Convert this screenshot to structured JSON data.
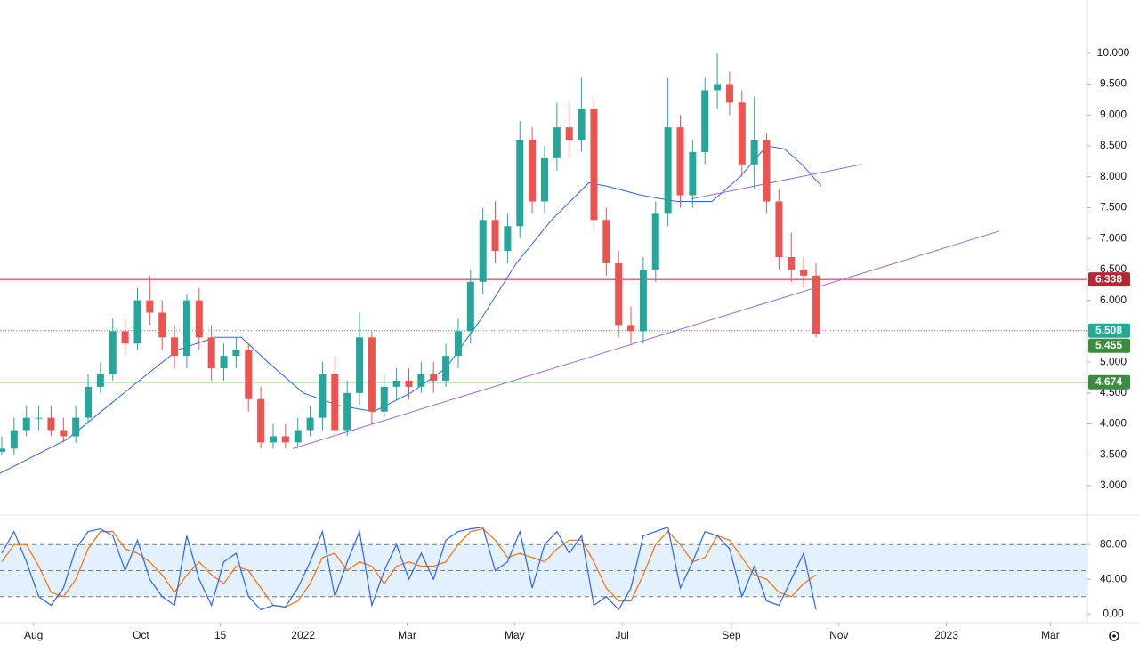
{
  "chart_data": [
    {
      "type": "candlestick",
      "x": [
        -18,
        -11,
        -4,
        3,
        10,
        17,
        24,
        31,
        38,
        45,
        52,
        59,
        66,
        73,
        80,
        87,
        94,
        101,
        108,
        115,
        122,
        129,
        136,
        143,
        150,
        157,
        164,
        171,
        178,
        185,
        192,
        199,
        206,
        213,
        220,
        227,
        234,
        241,
        248,
        255,
        262,
        269,
        276,
        283,
        290,
        297,
        304,
        311,
        318,
        325,
        332,
        339,
        346,
        353,
        360,
        367,
        374,
        381,
        388,
        395,
        402,
        409,
        416,
        423,
        430,
        437,
        444
      ],
      "open": [
        3.55,
        3.6,
        3.9,
        4.1,
        4.1,
        3.9,
        3.8,
        4.1,
        4.6,
        4.8,
        5.5,
        5.3,
        6.0,
        5.8,
        5.4,
        5.1,
        6.0,
        5.4,
        4.9,
        5.1,
        5.2,
        4.4,
        3.7,
        3.8,
        3.7,
        3.9,
        4.1,
        4.8,
        3.9,
        4.5,
        5.4,
        4.2,
        4.6,
        4.7,
        4.6,
        4.8,
        4.7,
        5.1,
        5.5,
        6.3,
        7.3,
        6.8,
        7.2,
        8.6,
        7.6,
        8.3,
        8.8,
        8.6,
        9.1,
        7.3,
        6.6,
        5.6,
        5.5,
        6.5,
        7.4,
        8.8,
        7.7,
        8.4,
        9.4,
        9.5,
        9.2,
        8.2,
        8.6,
        7.6,
        6.7,
        6.5,
        6.4
      ],
      "high": [
        3.8,
        4.1,
        4.3,
        4.3,
        4.3,
        4.1,
        4.3,
        4.8,
        5.0,
        5.7,
        5.7,
        6.2,
        6.4,
        6.0,
        5.6,
        6.1,
        6.2,
        5.6,
        5.3,
        5.4,
        5.3,
        4.6,
        4.0,
        4.0,
        4.1,
        4.3,
        5.0,
        5.1,
        4.7,
        5.8,
        5.5,
        4.8,
        4.9,
        4.9,
        5.0,
        5.0,
        5.3,
        5.7,
        6.5,
        7.5,
        7.6,
        7.4,
        8.9,
        8.8,
        8.5,
        9.2,
        9.2,
        9.6,
        9.3,
        7.5,
        6.8,
        5.9,
        6.7,
        7.6,
        9.6,
        9.0,
        8.6,
        9.6,
        10.0,
        9.7,
        9.4,
        9.3,
        8.7,
        7.8,
        7.1,
        6.7,
        6.6
      ],
      "low": [
        3.5,
        3.5,
        3.8,
        3.9,
        3.8,
        3.7,
        3.7,
        4.0,
        4.5,
        4.7,
        5.1,
        5.2,
        5.6,
        5.2,
        4.9,
        4.9,
        5.2,
        4.7,
        4.7,
        4.9,
        4.2,
        3.6,
        3.6,
        3.6,
        3.6,
        3.8,
        3.9,
        3.8,
        3.8,
        4.3,
        4.0,
        4.1,
        4.4,
        4.4,
        4.5,
        4.5,
        4.6,
        4.9,
        5.3,
        6.1,
        6.6,
        6.6,
        7.0,
        7.4,
        7.4,
        8.1,
        8.3,
        8.4,
        7.1,
        6.4,
        5.4,
        5.3,
        5.3,
        6.3,
        7.2,
        7.5,
        7.5,
        8.2,
        9.1,
        9.0,
        8.0,
        7.8,
        7.4,
        6.5,
        6.3,
        6.2,
        5.4
      ],
      "close": [
        3.6,
        3.9,
        4.1,
        4.1,
        3.9,
        3.8,
        4.1,
        4.6,
        4.8,
        5.5,
        5.3,
        6.0,
        5.8,
        5.4,
        5.1,
        6.0,
        5.4,
        4.9,
        5.1,
        5.2,
        4.4,
        3.7,
        3.8,
        3.7,
        3.9,
        4.1,
        4.8,
        3.9,
        4.5,
        5.4,
        4.2,
        4.6,
        4.7,
        4.6,
        4.8,
        4.7,
        5.1,
        5.5,
        6.3,
        7.3,
        6.8,
        7.2,
        8.6,
        7.6,
        8.3,
        8.8,
        8.6,
        9.1,
        7.3,
        6.6,
        5.6,
        5.5,
        6.5,
        7.4,
        8.8,
        7.7,
        8.4,
        9.4,
        9.5,
        9.2,
        8.2,
        8.6,
        7.6,
        6.7,
        6.5,
        6.4,
        5.46
      ],
      "up_color": "#26a69a",
      "down_color": "#ef5350",
      "xlim": [
        -19,
        598
      ],
      "xticks": [
        {
          "value": 0,
          "label": "Aug"
        },
        {
          "value": 61,
          "label": "Oct"
        },
        {
          "value": 106,
          "label": "15"
        },
        {
          "value": 153,
          "label": "2022"
        },
        {
          "value": 212,
          "label": "Mar"
        },
        {
          "value": 273,
          "label": "May"
        },
        {
          "value": 334,
          "label": "Jul"
        },
        {
          "value": 396,
          "label": "Sep"
        },
        {
          "value": 457,
          "label": "Nov"
        },
        {
          "value": 518,
          "label": "2023"
        },
        {
          "value": 577,
          "label": "Mar"
        }
      ],
      "ylim": [
        2.54,
        10.86
      ],
      "yticks": [
        {
          "value": 3,
          "label": "3.000"
        },
        {
          "value": 3.5,
          "label": "3.500"
        },
        {
          "value": 4,
          "label": "4.000"
        },
        {
          "value": 4.5,
          "label": "4.500"
        },
        {
          "value": 5,
          "label": "5.000"
        },
        {
          "value": 5.5,
          "label": "5.500"
        },
        {
          "value": 6,
          "label": "6.000"
        },
        {
          "value": 6.5,
          "label": "6.500"
        },
        {
          "value": 7,
          "label": "7.000"
        },
        {
          "value": 7.5,
          "label": "7.500"
        },
        {
          "value": 8,
          "label": "8.000"
        },
        {
          "value": 8.5,
          "label": "8.500"
        },
        {
          "value": 9,
          "label": "9.000"
        },
        {
          "value": 9.5,
          "label": "9.500"
        },
        {
          "value": 10,
          "label": "10.000"
        }
      ],
      "lines": [
        {
          "color": "#2962ff",
          "x": [
            -19,
            19,
            60,
            82,
            103,
            118,
            133,
            153,
            173,
            193,
            214,
            234,
            254,
            274,
            294,
            315,
            325,
            345,
            365,
            385,
            401,
            416,
            426,
            436,
            447
          ],
          "values": [
            3.2,
            3.75,
            4.7,
            5.2,
            5.4,
            5.4,
            5.0,
            4.5,
            4.3,
            4.2,
            4.5,
            4.9,
            5.7,
            6.6,
            7.3,
            7.9,
            7.85,
            7.7,
            7.6,
            7.6,
            8.0,
            8.5,
            8.45,
            8.2,
            7.85
          ]
        },
        {
          "color": "#9c6ade",
          "x": [
            147,
            548
          ],
          "values": [
            3.6,
            7.12
          ]
        },
        {
          "color": "#9c6ade",
          "x": [
            373,
            470
          ],
          "values": [
            7.64,
            8.2
          ]
        }
      ],
      "levels": [
        {
          "value": 6.338,
          "color": "#b22833",
          "dotted": false
        },
        {
          "value": 5.508,
          "color": "#22ab94",
          "dotted": true
        },
        {
          "value": 5.455,
          "color": "#388e3c",
          "dotted": false
        },
        {
          "value": 4.674,
          "color": "#388e3c",
          "dotted": false
        }
      ]
    },
    {
      "type": "line",
      "ylim": [
        -10,
        113
      ],
      "yticks": [
        {
          "value": 0,
          "label": "0.00"
        },
        {
          "value": 40,
          "label": "40.00"
        },
        {
          "value": 80,
          "label": "80.00"
        }
      ],
      "levels": [
        20,
        50,
        80
      ],
      "band": [
        20,
        80
      ],
      "band_color": "#e3f0fd",
      "series": [
        {
          "color": "#2962ff",
          "values": [
            70,
            95,
            60,
            20,
            10,
            30,
            75,
            95,
            98,
            90,
            50,
            85,
            40,
            20,
            10,
            90,
            40,
            10,
            60,
            70,
            20,
            5,
            10,
            8,
            30,
            60,
            95,
            20,
            60,
            95,
            10,
            50,
            80,
            40,
            70,
            40,
            85,
            95,
            98,
            100,
            50,
            60,
            95,
            30,
            80,
            95,
            70,
            90,
            10,
            20,
            5,
            30,
            90,
            95,
            100,
            30,
            60,
            95,
            90,
            75,
            20,
            55,
            15,
            10,
            40,
            70,
            5
          ]
        },
        {
          "color": "#ff6d00",
          "values": [
            60,
            80,
            80,
            55,
            25,
            20,
            40,
            75,
            95,
            95,
            75,
            70,
            60,
            45,
            25,
            45,
            60,
            45,
            35,
            55,
            50,
            30,
            10,
            8,
            15,
            35,
            65,
            70,
            50,
            60,
            55,
            35,
            55,
            60,
            55,
            55,
            60,
            80,
            95,
            98,
            85,
            65,
            70,
            65,
            60,
            75,
            85,
            85,
            60,
            30,
            15,
            15,
            45,
            80,
            95,
            80,
            60,
            65,
            90,
            85,
            65,
            45,
            40,
            25,
            20,
            35,
            45
          ]
        }
      ]
    }
  ]
}
